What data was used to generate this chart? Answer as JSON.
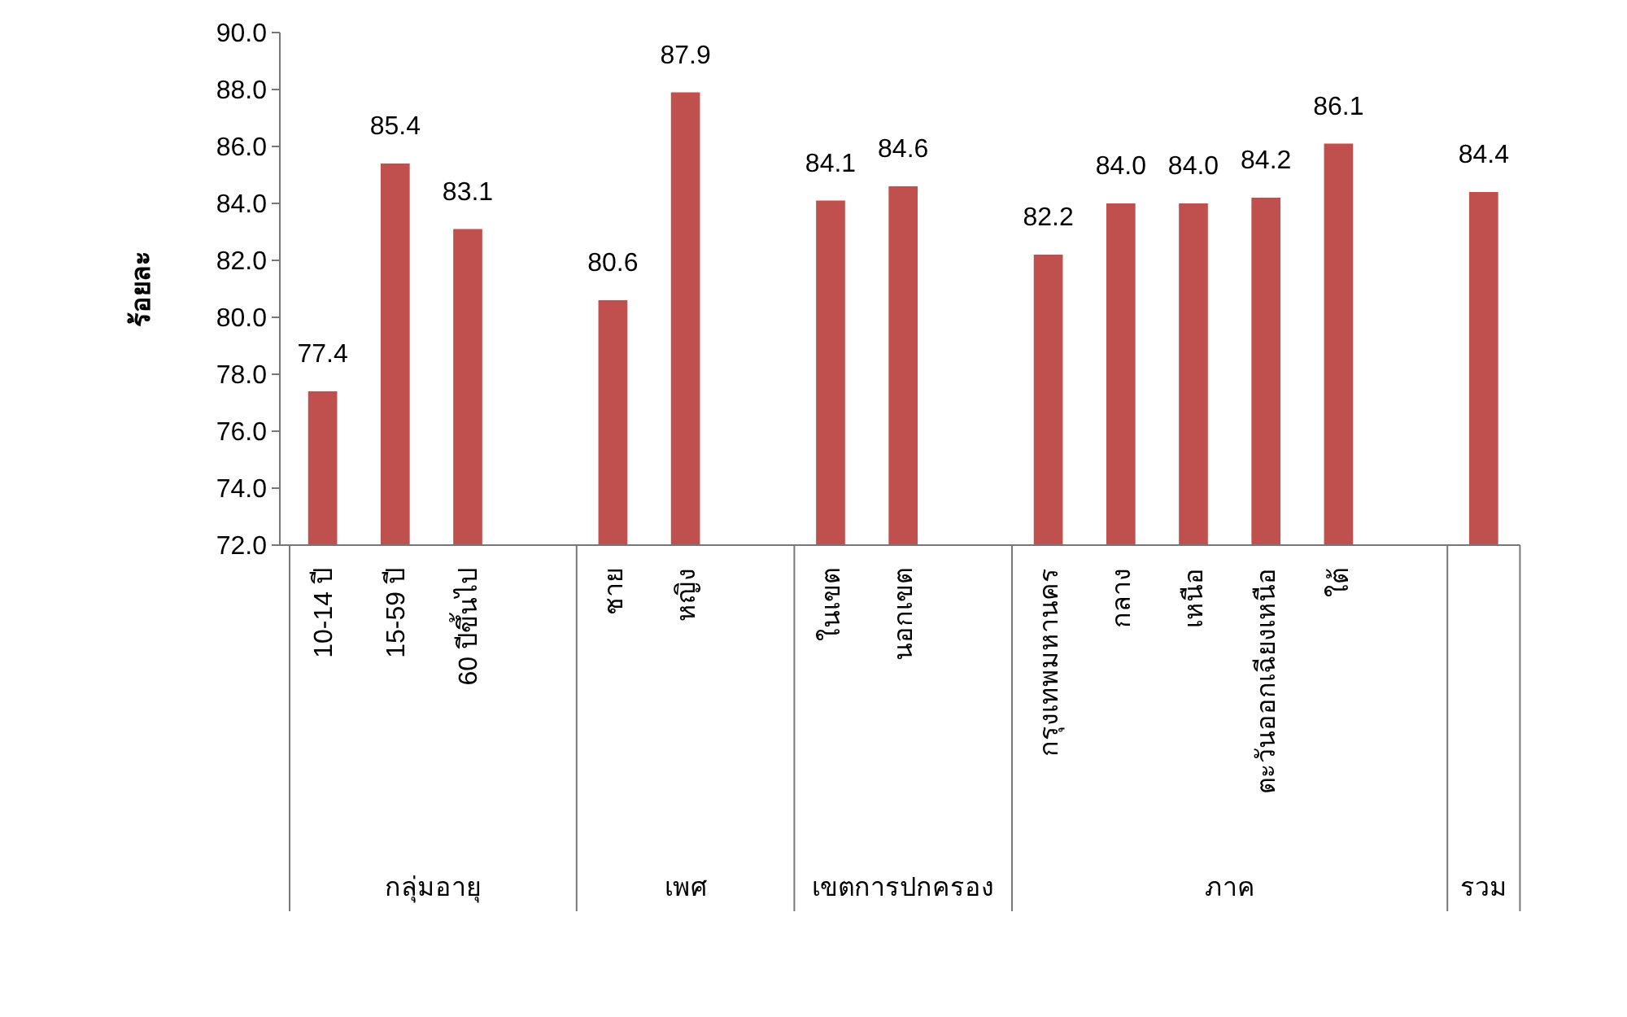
{
  "chart_data": {
    "type": "bar",
    "ylabel": "ร้อยละ",
    "categories": [
      "10-14 ปี",
      "15-59 ปี",
      "60 ปีขึ้นไป",
      null,
      "ชาย",
      "หญิง",
      null,
      "ในเขต",
      "นอกเขต",
      null,
      "กรุงเทพมหานคร",
      "กลาง",
      "เหนือ",
      "ตะวันออกเฉียงเหนือ",
      "ใต้",
      null,
      null
    ],
    "values": [
      77.4,
      85.4,
      83.1,
      null,
      80.6,
      87.9,
      null,
      84.1,
      84.6,
      null,
      82.2,
      84.0,
      84.0,
      84.2,
      86.1,
      null,
      84.4
    ],
    "value_labels": [
      "77.4",
      "85.4",
      "83.1",
      null,
      "80.6",
      "87.9",
      null,
      "84.1",
      "84.6",
      null,
      "82.2",
      "84.0",
      "84.0",
      "84.2",
      "86.1",
      null,
      "84.4"
    ],
    "color": "#c0504d",
    "ylim": [
      72,
      90
    ],
    "yticks": [
      {
        "value": 72,
        "label": "72.0"
      },
      {
        "value": 74,
        "label": "74.0"
      },
      {
        "value": 76,
        "label": "76.0"
      },
      {
        "value": 78,
        "label": "78.0"
      },
      {
        "value": 80,
        "label": "80.0"
      },
      {
        "value": 82,
        "label": "82.0"
      },
      {
        "value": 84,
        "label": "84.0"
      },
      {
        "value": 86,
        "label": "86.0"
      },
      {
        "value": 88,
        "label": "88.0"
      },
      {
        "value": 90,
        "label": "90.0"
      }
    ],
    "annotations": [
      "กลุ่มอายุ",
      "เพศ",
      "เขตการปกครอง",
      "ภาค",
      "รวม"
    ],
    "grid": false
  }
}
